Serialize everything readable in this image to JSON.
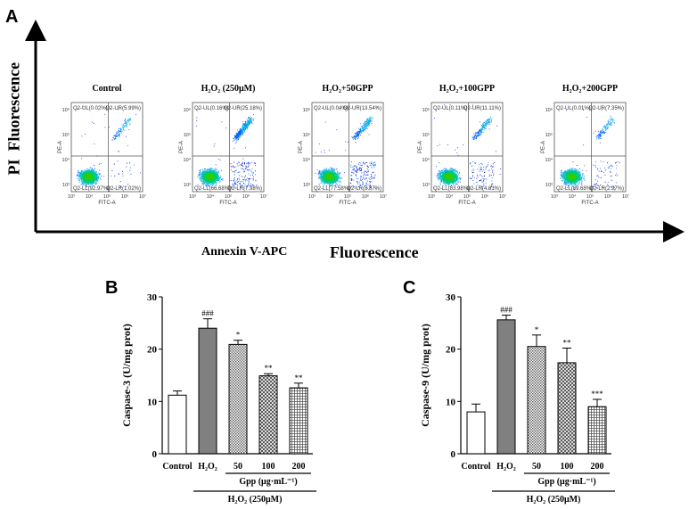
{
  "panels": {
    "A": {
      "letter": "A",
      "y_title_pi": "PI",
      "y_title_fluorescence": "Fluorescence",
      "x_title_annexin": "Annexin  V-APC",
      "x_title_fluorescence": "Fluorescence",
      "axis_x_label": "FITC-A",
      "axis_y_label": "PE-A",
      "x_tick_labels": [
        "10³",
        "10⁴",
        "10⁵",
        "10⁶",
        "10⁷"
      ],
      "y_tick_labels": [
        "10³",
        "10⁴",
        "10⁵",
        "10⁶"
      ],
      "plots": [
        {
          "title": "Control",
          "ul": "Q2-UL(0.02%)",
          "ur": "Q2-UR(5.99%)",
          "ll": "Q2-LL(92.97%)",
          "lr": "Q2-LR(1.02%)",
          "ur_frac": 0.06,
          "lr_frac": 0.01
        },
        {
          "title": "H₂O₂ (250μM)",
          "ul": "Q2-UL(0.16%)",
          "ur": "Q2-UR(25.18%)",
          "ll": "Q2-LL(66.68%)",
          "lr": "Q2-LR(7.98%)",
          "ur_frac": 0.25,
          "lr_frac": 0.08
        },
        {
          "title": "H₂O₂+50GPP",
          "ul": "Q2-UL(0.04%)",
          "ur": "Q2-UR(13.54%)",
          "ll": "Q2-LL(77.58%)",
          "lr": "Q2-LR(8.87%)",
          "ur_frac": 0.14,
          "lr_frac": 0.09
        },
        {
          "title": "H₂O₂+100GPP",
          "ul": "Q2-UL(0.11%)",
          "ur": "Q2-UR(11.11%)",
          "ll": "Q2-LL(83.98%)",
          "lr": "Q2-LR(4.81%)",
          "ur_frac": 0.11,
          "lr_frac": 0.05
        },
        {
          "title": "H₂O₂+200GPP",
          "ul": "Q2-UL(0.01%)",
          "ur": "Q2-UR(7.35%)",
          "ll": "Q2-LL(89.68%)",
          "lr": "Q2-LR(2.97%)",
          "ur_frac": 0.07,
          "lr_frac": 0.03
        }
      ]
    },
    "B": {
      "letter": "B"
    },
    "C": {
      "letter": "C"
    }
  },
  "chart_data": [
    {
      "type": "bar",
      "panel": "B",
      "ylabel": "Caspase-3 (U/mg prot)",
      "categories": [
        "Control",
        "H₂O₂",
        "50",
        "100",
        "200"
      ],
      "values": [
        11.2,
        24.0,
        20.9,
        14.9,
        12.6
      ],
      "errors": [
        0.8,
        1.8,
        0.8,
        0.4,
        0.9
      ],
      "annotations": [
        "",
        "###",
        "*",
        "**",
        "**"
      ],
      "patterns": [
        "white",
        "gray",
        "dotted",
        "crosshatch",
        "grid"
      ],
      "ylim": [
        0,
        30
      ],
      "yticks": [
        0,
        10,
        20,
        30
      ],
      "group_label": "Gpp (μg·mL⁻¹)",
      "bottom_label": "H₂O₂ (250μM)"
    },
    {
      "type": "bar",
      "panel": "C",
      "ylabel": "Caspase-9 (U/mg prot)",
      "categories": [
        "Control",
        "H₂O₂",
        "50",
        "100",
        "200"
      ],
      "values": [
        8.0,
        25.6,
        20.5,
        17.4,
        9.0
      ],
      "errors": [
        1.5,
        0.9,
        2.2,
        2.8,
        1.4
      ],
      "annotations": [
        "",
        "###",
        "*",
        "**",
        "***"
      ],
      "patterns": [
        "white",
        "gray",
        "dotted",
        "crosshatch",
        "grid"
      ],
      "ylim": [
        0,
        30
      ],
      "yticks": [
        0,
        10,
        20,
        30
      ],
      "group_label": "Gpp (μg·mL⁻¹)",
      "bottom_label": "H₂O₂ (250μM)"
    }
  ]
}
